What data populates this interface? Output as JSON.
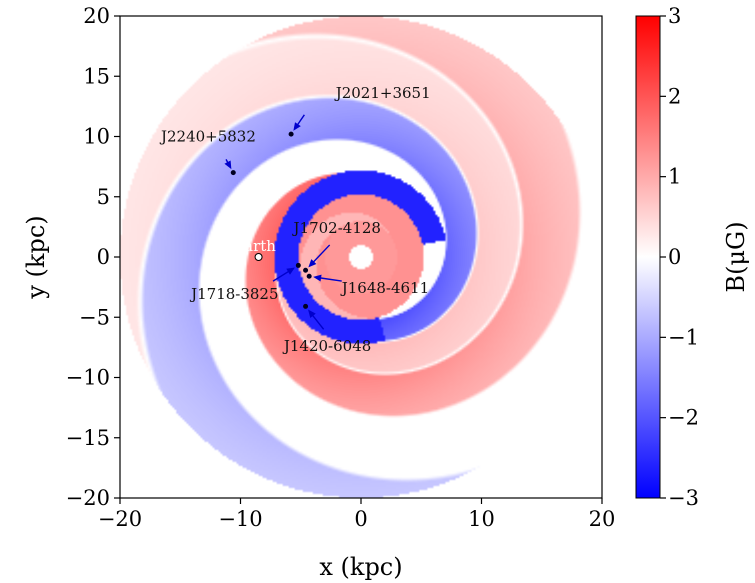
{
  "chart_data": {
    "type": "heatmap",
    "title": "",
    "xlabel": "x (kpc)",
    "ylabel": "y (kpc)",
    "xlim": [
      -20,
      20
    ],
    "ylim": [
      -20,
      20
    ],
    "xticks": [
      -20,
      -10,
      0,
      10,
      20
    ],
    "yticks": [
      -20,
      -15,
      -10,
      -5,
      0,
      5,
      10,
      15,
      20
    ],
    "colorbar": {
      "label": "B(μG)",
      "range": [
        -3,
        3
      ],
      "ticks": [
        -3,
        -2,
        -1,
        0,
        1,
        2,
        3
      ],
      "colormap": "bwr",
      "colors": {
        "low": "#0000ff",
        "mid": "#ffffff",
        "high": "#ff0000"
      }
    },
    "earth": {
      "name": "Earth",
      "x": -8.5,
      "y": 0.0
    },
    "pulsars": [
      {
        "name": "J2021+3651",
        "x": -5.8,
        "y": 10.2
      },
      {
        "name": "J2240+5832",
        "x": -10.6,
        "y": 7.0
      },
      {
        "name": "J1702-4128",
        "x": -4.6,
        "y": -1.1
      },
      {
        "name": "J1718-3825",
        "x": -5.2,
        "y": -0.7
      },
      {
        "name": "J1648-4611",
        "x": -4.3,
        "y": -1.6
      },
      {
        "name": "J1420-6048",
        "x": -4.6,
        "y": -4.1
      }
    ],
    "grid": false
  }
}
